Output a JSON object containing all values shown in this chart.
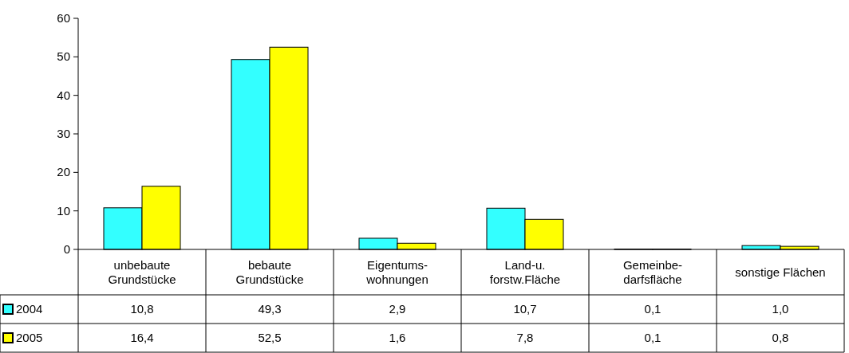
{
  "chart_data": {
    "type": "bar",
    "categories": [
      "unbebaute\nGrundstücke",
      "bebaute\nGrundstücke",
      "Eigentums-\nwohnungen",
      "Land-u.\nforstw.Fläche",
      "Gemeinbe-\ndarfsfläche",
      "sonstige Flächen"
    ],
    "series": [
      {
        "name": "2004",
        "color": "#33ffff",
        "values": [
          10.8,
          49.3,
          2.9,
          10.7,
          0.1,
          1.0
        ],
        "value_labels": [
          "10,8",
          "49,3",
          "2,9",
          "10,7",
          "0,1",
          "1,0"
        ]
      },
      {
        "name": "2005",
        "color": "#ffff00",
        "values": [
          16.4,
          52.5,
          1.6,
          7.8,
          0.1,
          0.8
        ],
        "value_labels": [
          "16,4",
          "52,5",
          "1,6",
          "7,8",
          "0,1",
          "0,8"
        ]
      }
    ],
    "ylim": [
      0,
      60
    ],
    "yticks": [
      0,
      10,
      20,
      30,
      40,
      50,
      60
    ],
    "grid": false,
    "legend": "bottom left"
  }
}
